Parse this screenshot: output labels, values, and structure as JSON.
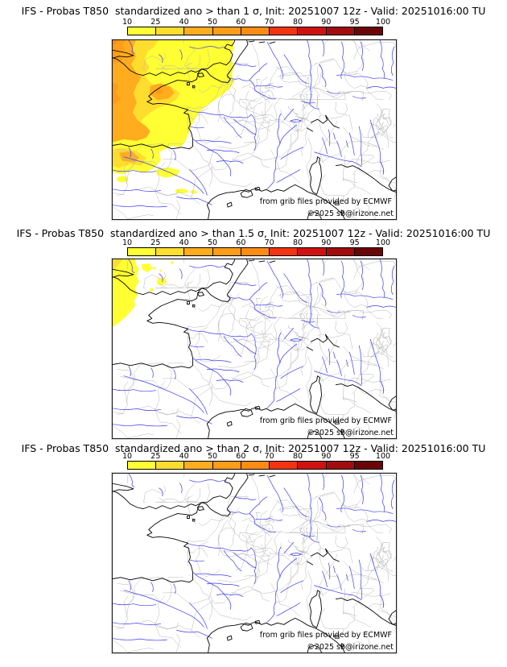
{
  "colorbar": {
    "ticks": [
      "10",
      "25",
      "40",
      "50",
      "60",
      "70",
      "80",
      "90",
      "95",
      "100"
    ],
    "segment_colors": [
      "#ffff33",
      "#ffdd2e",
      "#ffac1f",
      "#ff9c18",
      "#ff8c12",
      "#f23410",
      "#cf1210",
      "#a30c0c",
      "#6b0606"
    ]
  },
  "panels": [
    {
      "title": "IFS - Probas T850  standardized ano > than 1 σ, Init: 20251007 12z - Valid: 20251016:00 TU",
      "threshold_sigma": "1",
      "attribution": "from grib files provided by ECMWF",
      "copyright": "©2025 sb@irizone.net"
    },
    {
      "title": "IFS - Probas T850  standardized ano > than 1.5 σ, Init: 20251007 12z - Valid: 20251016:00 TU",
      "threshold_sigma": "1.5",
      "attribution": "from grib files provided by ECMWF",
      "copyright": "©2025 sb@irizone.net"
    },
    {
      "title": "IFS - Probas T850  standardized ano > than 2 σ, Init: 20251007 12z - Valid: 20251016:00 TU",
      "threshold_sigma": "2",
      "attribution": "from grib files provided by ECMWF",
      "copyright": "©2025 sb@irizone.net"
    }
  ],
  "map_colors": {
    "coastline": "#000000",
    "rivers": "#3a3aef",
    "admin_boundaries": "#b5b5b5",
    "background": "#ffffff"
  }
}
